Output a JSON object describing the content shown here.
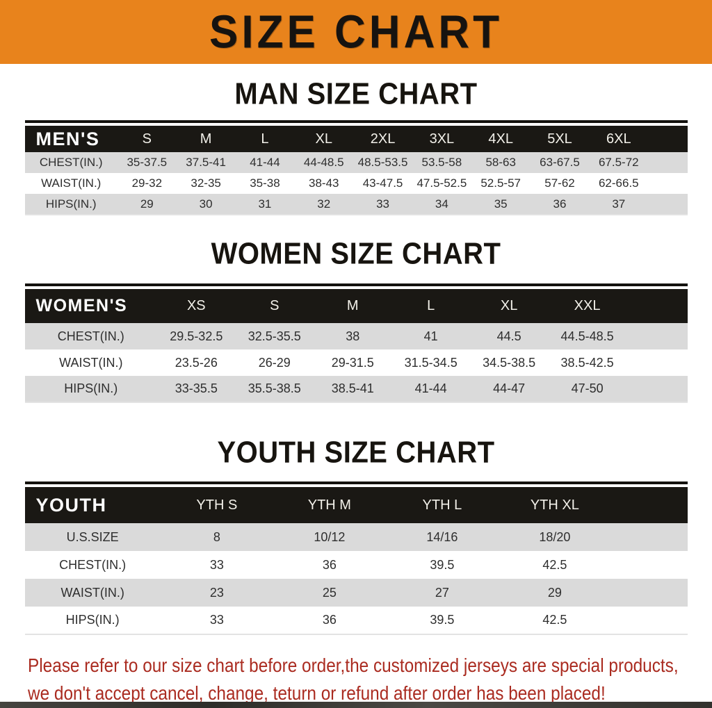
{
  "banner": {
    "title": "SIZE CHART"
  },
  "colors": {
    "banner_bg": "#E8831C",
    "table_header_bg": "#1A1814",
    "row_stripe": "#DADADA",
    "note_text": "#AA2B20"
  },
  "sections": [
    {
      "id": "men",
      "heading": "MAN SIZE CHART",
      "corner_label": "MEN'S",
      "columns": [
        "S",
        "M",
        "L",
        "XL",
        "2XL",
        "3XL",
        "4XL",
        "5XL",
        "6XL"
      ],
      "rows": [
        {
          "label": "CHEST(IN.)",
          "values": [
            "35-37.5",
            "37.5-41",
            "41-44",
            "44-48.5",
            "48.5-53.5",
            "53.5-58",
            "58-63",
            "63-67.5",
            "67.5-72"
          ]
        },
        {
          "label": "WAIST(IN.)",
          "values": [
            "29-32",
            "32-35",
            "35-38",
            "38-43",
            "43-47.5",
            "47.5-52.5",
            "52.5-57",
            "57-62",
            "62-66.5"
          ]
        },
        {
          "label": "HIPS(IN.)",
          "values": [
            "29",
            "30",
            "31",
            "32",
            "33",
            "34",
            "35",
            "36",
            "37"
          ]
        }
      ]
    },
    {
      "id": "women",
      "heading": "WOMEN SIZE CHART",
      "corner_label": "WOMEN'S",
      "columns": [
        "XS",
        "S",
        "M",
        "L",
        "XL",
        "XXL"
      ],
      "rows": [
        {
          "label": "CHEST(IN.)",
          "values": [
            "29.5-32.5",
            "32.5-35.5",
            "38",
            "41",
            "44.5",
            "44.5-48.5"
          ]
        },
        {
          "label": "WAIST(IN.)",
          "values": [
            "23.5-26",
            "26-29",
            "29-31.5",
            "31.5-34.5",
            "34.5-38.5",
            "38.5-42.5"
          ]
        },
        {
          "label": "HIPS(IN.)",
          "values": [
            "33-35.5",
            "35.5-38.5",
            "38.5-41",
            "41-44",
            "44-47",
            "47-50"
          ]
        }
      ]
    },
    {
      "id": "youth",
      "heading": "YOUTH SIZE CHART",
      "corner_label": "YOUTH",
      "columns": [
        "YTH S",
        "YTH M",
        "YTH L",
        "YTH XL"
      ],
      "rows": [
        {
          "label": "U.S.SIZE",
          "values": [
            "8",
            "10/12",
            "14/16",
            "18/20"
          ]
        },
        {
          "label": "CHEST(IN.)",
          "values": [
            "33",
            "36",
            "39.5",
            "42.5"
          ]
        },
        {
          "label": "WAIST(IN.)",
          "values": [
            "23",
            "25",
            "27",
            "29"
          ]
        },
        {
          "label": "HIPS(IN.)",
          "values": [
            "33",
            "36",
            "39.5",
            "42.5"
          ]
        }
      ]
    }
  ],
  "footer": {
    "line1": "Please refer to our size chart before order,the customized jerseys are special products,",
    "line2": "we don't accept cancel, change, teturn or refund after order has been placed!"
  }
}
